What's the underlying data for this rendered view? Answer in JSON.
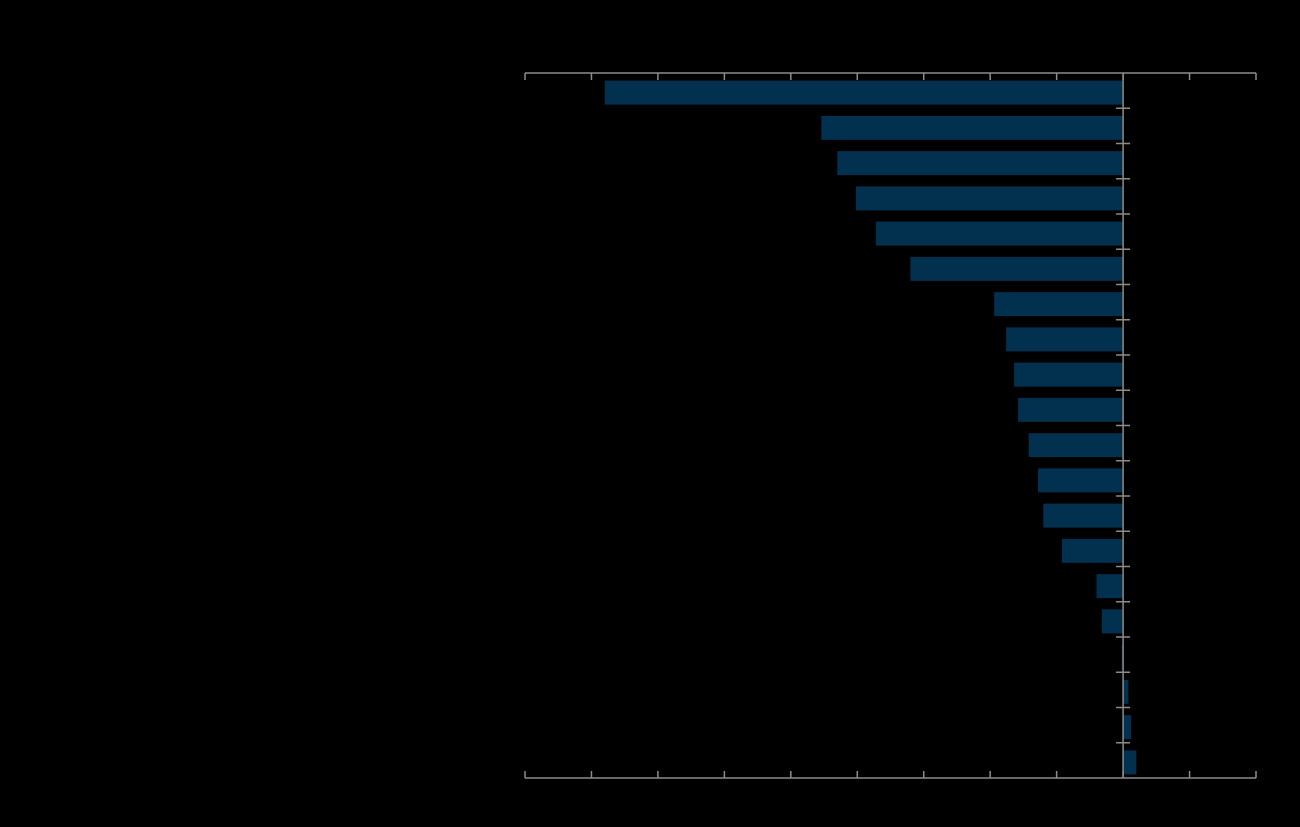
{
  "chart_data": {
    "type": "bar",
    "orientation": "horizontal",
    "categories": [
      "",
      "",
      "",
      "",
      "",
      "",
      "",
      "",
      "",
      "",
      "",
      "",
      "",
      "",
      "",
      "",
      "",
      "",
      "",
      ""
    ],
    "values": [
      -39,
      -22.7,
      -21.5,
      -20.1,
      -18.6,
      -16,
      -9.7,
      -8.8,
      -8.2,
      -7.9,
      -7.1,
      -6.4,
      -6,
      -4.6,
      -2,
      -1.6,
      -0.1,
      0.4,
      0.6,
      1
    ],
    "xlim": [
      -45,
      10
    ],
    "major_ticks": [
      -45,
      -40,
      -35,
      -30,
      -25,
      -20,
      -15,
      -10,
      -5,
      0,
      5,
      10
    ],
    "grid": false,
    "title": "",
    "xlabel": "",
    "ylabel": "",
    "colors": {
      "background": "#000000",
      "bar": "#01314e",
      "axis": "#8c8c8c"
    }
  }
}
